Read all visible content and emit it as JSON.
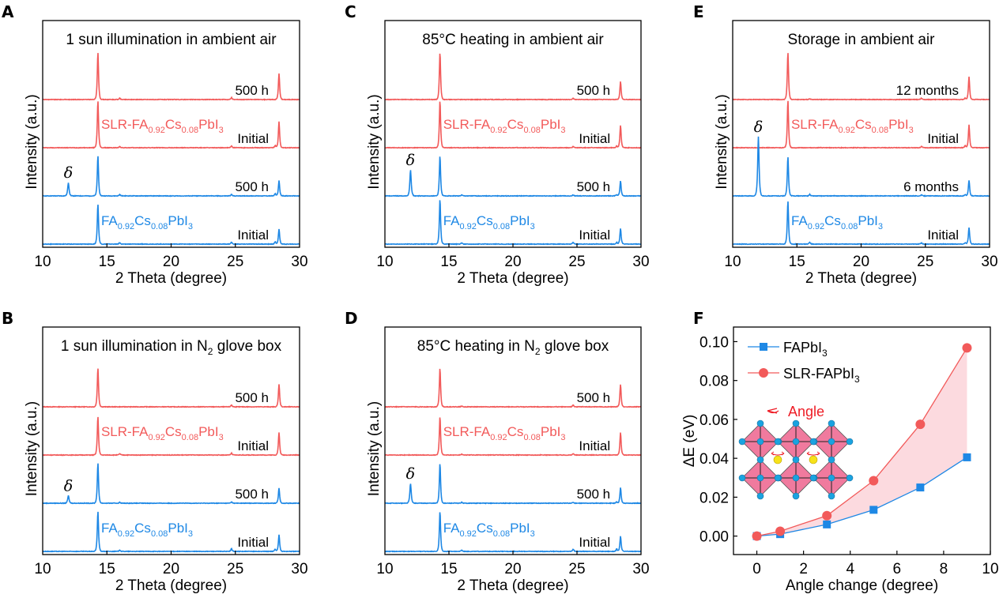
{
  "colors": {
    "red": "#f25a5a",
    "blue": "#1e88e5",
    "fill": "#fbd3d9",
    "octa": "#f07a9e",
    "atom": "#1aa3e0",
    "cation": "#f7e21a",
    "angle": "#ee1c25"
  },
  "chart_data": [
    {
      "id": "A",
      "type": "line",
      "letter": "A",
      "title": "1 sun illumination in ambient air",
      "xlabel": "2 Theta (degree)",
      "ylabel": "Intensity (a.u.)",
      "xlim": [
        10,
        30
      ],
      "xticks": [
        10,
        15,
        20,
        25,
        30
      ],
      "xtick_labels": [
        "10",
        "15",
        "20",
        "25",
        "30"
      ],
      "series": [
        {
          "name": "SLR-FA0.92Cs0.08PbI3 500 h",
          "color": "red",
          "offset": 3,
          "label": "500 h",
          "peaks": [
            [
              14.3,
              1.0
            ],
            [
              16.0,
              0.03
            ],
            [
              24.7,
              0.04
            ],
            [
              28.4,
              0.55
            ]
          ]
        },
        {
          "name": "SLR-FA0.92Cs0.08PbI3 Initial",
          "color": "red",
          "offset": 2,
          "label": "Initial",
          "peaks": [
            [
              14.3,
              1.0
            ],
            [
              16.0,
              0.03
            ],
            [
              24.7,
              0.04
            ],
            [
              28.1,
              0.05
            ],
            [
              28.4,
              0.55
            ]
          ]
        },
        {
          "name": "FA0.92Cs0.08PbI3 500 h",
          "color": "blue",
          "offset": 1,
          "label": "500 h",
          "peaks": [
            [
              12.0,
              0.28
            ],
            [
              14.3,
              0.85
            ],
            [
              16.0,
              0.03
            ],
            [
              24.7,
              0.03
            ],
            [
              28.1,
              0.05
            ],
            [
              28.4,
              0.32
            ]
          ]
        },
        {
          "name": "FA0.92Cs0.08PbI3 Initial",
          "color": "blue",
          "offset": 0,
          "label": "Initial",
          "peaks": [
            [
              14.3,
              0.85
            ],
            [
              16.0,
              0.03
            ],
            [
              24.7,
              0.04
            ],
            [
              28.1,
              0.05
            ],
            [
              28.4,
              0.32
            ]
          ]
        }
      ],
      "sample_labels": [
        {
          "text": "SLR-FA",
          "sub1": "0.92",
          "mid": "Cs",
          "sub2": "0.08",
          "end": "PbI",
          "sub3": "3",
          "color": "red"
        },
        {
          "text": "FA",
          "sub1": "0.92",
          "mid": "Cs",
          "sub2": "0.08",
          "end": "PbI",
          "sub3": "3",
          "color": "blue"
        }
      ],
      "delta_label": "δ",
      "delta_x": 12.0
    },
    {
      "id": "B",
      "type": "line",
      "letter": "B",
      "title": "1 sun illumination in N",
      "title_sub": "2",
      "title_end": " glove box",
      "xlabel": "2 Theta (degree)",
      "ylabel": "Intensity (a.u.)",
      "xlim": [
        10,
        30
      ],
      "xticks": [
        10,
        15,
        20,
        25,
        30
      ],
      "xtick_labels": [
        "10",
        "15",
        "20",
        "25",
        "30"
      ],
      "series": [
        {
          "name": "SLR-FA0.92Cs0.08PbI3 500 h",
          "color": "red",
          "offset": 3,
          "label": "500 h",
          "peaks": [
            [
              14.3,
              0.82
            ],
            [
              24.7,
              0.04
            ],
            [
              28.4,
              0.48
            ]
          ]
        },
        {
          "name": "SLR-FA0.92Cs0.08PbI3 Initial",
          "color": "red",
          "offset": 2,
          "label": "Initial",
          "peaks": [
            [
              14.3,
              0.82
            ],
            [
              16.0,
              0.03
            ],
            [
              24.7,
              0.04
            ],
            [
              28.4,
              0.48
            ]
          ]
        },
        {
          "name": "FA0.92Cs0.08PbI3 500 h",
          "color": "blue",
          "offset": 1,
          "label": "500 h",
          "peaks": [
            [
              12.0,
              0.16
            ],
            [
              14.3,
              0.85
            ],
            [
              16.0,
              0.02
            ],
            [
              24.7,
              0.03
            ],
            [
              28.4,
              0.32
            ]
          ]
        },
        {
          "name": "FA0.92Cs0.08PbI3 Initial",
          "color": "blue",
          "offset": 0,
          "label": "Initial",
          "peaks": [
            [
              14.3,
              0.85
            ],
            [
              16.0,
              0.03
            ],
            [
              24.7,
              0.06
            ],
            [
              28.1,
              0.05
            ],
            [
              28.4,
              0.35
            ]
          ]
        }
      ],
      "sample_labels": [
        {
          "text": "SLR-FA",
          "sub1": "0.92",
          "mid": "Cs",
          "sub2": "0.08",
          "end": "PbI",
          "sub3": "3",
          "color": "red"
        },
        {
          "text": "FA",
          "sub1": "0.92",
          "mid": "Cs",
          "sub2": "0.08",
          "end": "PbI",
          "sub3": "3",
          "color": "blue"
        }
      ],
      "delta_label": "δ",
      "delta_x": 12.0
    },
    {
      "id": "C",
      "type": "line",
      "letter": "C",
      "title": "85°C heating in ambient air",
      "xlabel": "2 Theta (degree)",
      "ylabel": "Intensity (a.u.)",
      "xlim": [
        10,
        30
      ],
      "xticks": [
        10,
        15,
        20,
        25,
        30
      ],
      "xtick_labels": [
        "10",
        "15",
        "20",
        "25",
        "30"
      ],
      "series": [
        {
          "name": "SLR-FA0.92Cs0.08PbI3 500 h",
          "color": "red",
          "offset": 3,
          "label": "500 h",
          "peaks": [
            [
              14.3,
              1.0
            ],
            [
              24.7,
              0.03
            ],
            [
              28.4,
              0.38
            ]
          ]
        },
        {
          "name": "SLR-FA0.92Cs0.08PbI3 Initial",
          "color": "red",
          "offset": 2,
          "label": "Initial",
          "peaks": [
            [
              14.3,
              1.0
            ],
            [
              24.7,
              0.03
            ],
            [
              28.1,
              0.04
            ],
            [
              28.4,
              0.48
            ]
          ]
        },
        {
          "name": "FA0.92Cs0.08PbI3 500 h",
          "color": "blue",
          "offset": 1,
          "label": "500 h",
          "peaks": [
            [
              12.0,
              0.55
            ],
            [
              14.3,
              0.85
            ],
            [
              16.0,
              0.02
            ],
            [
              24.7,
              0.02
            ],
            [
              28.1,
              0.03
            ],
            [
              28.4,
              0.32
            ]
          ]
        },
        {
          "name": "FA0.92Cs0.08PbI3 Initial",
          "color": "blue",
          "offset": 0,
          "label": "Initial",
          "peaks": [
            [
              14.3,
              0.95
            ],
            [
              16.0,
              0.03
            ],
            [
              24.7,
              0.04
            ],
            [
              28.1,
              0.04
            ],
            [
              28.4,
              0.33
            ]
          ]
        }
      ],
      "sample_labels": [
        {
          "text": "SLR-FA",
          "sub1": "0.92",
          "mid": "Cs",
          "sub2": "0.08",
          "end": "PbI",
          "sub3": "3",
          "color": "red"
        },
        {
          "text": "FA",
          "sub1": "0.92",
          "mid": "Cs",
          "sub2": "0.08",
          "end": "PbI",
          "sub3": "3",
          "color": "blue"
        }
      ],
      "delta_label": "δ",
      "delta_x": 12.0
    },
    {
      "id": "D",
      "type": "line",
      "letter": "D",
      "title": "85°C heating in N",
      "title_sub": "2",
      "title_end": " glove box",
      "xlabel": "2 Theta (degree)",
      "ylabel": "Intensity (a.u.)",
      "xlim": [
        10,
        30
      ],
      "xticks": [
        10,
        15,
        20,
        25,
        30
      ],
      "xtick_labels": [
        "10",
        "15",
        "20",
        "25",
        "30"
      ],
      "series": [
        {
          "name": "SLR-FA0.92Cs0.08PbI3 500 h",
          "color": "red",
          "offset": 3,
          "label": "500 h",
          "peaks": [
            [
              14.3,
              0.82
            ],
            [
              16.0,
              0.02
            ],
            [
              24.7,
              0.04
            ],
            [
              28.4,
              0.48
            ]
          ]
        },
        {
          "name": "SLR-FA0.92Cs0.08PbI3 Initial",
          "color": "red",
          "offset": 2,
          "label": "Initial",
          "peaks": [
            [
              14.3,
              0.82
            ],
            [
              16.0,
              0.02
            ],
            [
              24.7,
              0.03
            ],
            [
              28.4,
              0.48
            ]
          ]
        },
        {
          "name": "FA0.92Cs0.08PbI3 500 h",
          "color": "blue",
          "offset": 1,
          "label": "500 h",
          "peaks": [
            [
              12.0,
              0.42
            ],
            [
              14.3,
              0.85
            ],
            [
              16.0,
              0.02
            ],
            [
              24.7,
              0.02
            ],
            [
              28.1,
              0.03
            ],
            [
              28.4,
              0.33
            ]
          ]
        },
        {
          "name": "FA0.92Cs0.08PbI3 Initial",
          "color": "blue",
          "offset": 0,
          "label": "Initial",
          "peaks": [
            [
              14.3,
              0.85
            ],
            [
              16.0,
              0.03
            ],
            [
              24.7,
              0.05
            ],
            [
              28.1,
              0.05
            ],
            [
              28.4,
              0.32
            ]
          ]
        }
      ],
      "sample_labels": [
        {
          "text": "SLR-FA",
          "sub1": "0.92",
          "mid": "Cs",
          "sub2": "0.08",
          "end": "PbI",
          "sub3": "3",
          "color": "red"
        },
        {
          "text": "FA",
          "sub1": "0.92",
          "mid": "Cs",
          "sub2": "0.08",
          "end": "PbI",
          "sub3": "3",
          "color": "blue"
        }
      ],
      "delta_label": "δ",
      "delta_x": 12.0
    },
    {
      "id": "E",
      "type": "line",
      "letter": "E",
      "title": "Storage in ambient air",
      "xlabel": "2 Theta (degree)",
      "ylabel": "Intensity (a.u.)",
      "xlim": [
        10,
        30
      ],
      "xticks": [
        10,
        15,
        20,
        25,
        30
      ],
      "xtick_labels": [
        "10",
        "15",
        "20",
        "25",
        "30"
      ],
      "series": [
        {
          "name": "SLR-FA0.92Cs0.08PbI3 12 months",
          "color": "red",
          "offset": 3,
          "label": "12 months",
          "peaks": [
            [
              14.3,
              1.0
            ],
            [
              16.0,
              0.02
            ],
            [
              24.7,
              0.03
            ],
            [
              28.1,
              0.03
            ],
            [
              28.4,
              0.48
            ]
          ]
        },
        {
          "name": "SLR-FA0.92Cs0.08PbI3 Initial",
          "color": "red",
          "offset": 2,
          "label": "Initial",
          "peaks": [
            [
              14.3,
              1.0
            ],
            [
              24.7,
              0.03
            ],
            [
              28.1,
              0.05
            ],
            [
              28.4,
              0.48
            ]
          ]
        },
        {
          "name": "FA0.92Cs0.08PbI3 6 months",
          "color": "blue",
          "offset": 1,
          "label": "6 months",
          "peaks": [
            [
              12.0,
              1.25
            ],
            [
              14.3,
              0.83
            ],
            [
              16.0,
              0.03
            ],
            [
              24.7,
              0.02
            ],
            [
              28.1,
              0.03
            ],
            [
              28.4,
              0.33
            ]
          ]
        },
        {
          "name": "FA0.92Cs0.08PbI3 Initial",
          "color": "blue",
          "offset": 0,
          "label": "Initial",
          "peaks": [
            [
              14.3,
              0.92
            ],
            [
              16.0,
              0.04
            ],
            [
              24.7,
              0.03
            ],
            [
              28.1,
              0.03
            ],
            [
              28.4,
              0.35
            ]
          ]
        }
      ],
      "sample_labels": [
        {
          "text": "SLR-FA",
          "sub1": "0.92",
          "mid": "Cs",
          "sub2": "0.08",
          "end": "PbI",
          "sub3": "3",
          "color": "red"
        },
        {
          "text": "FA",
          "sub1": "0.92",
          "mid": "Cs",
          "sub2": "0.08",
          "end": "PbI",
          "sub3": "3",
          "color": "blue"
        }
      ],
      "delta_label": "δ",
      "delta_x": 12.0
    },
    {
      "id": "F",
      "type": "line",
      "letter": "F",
      "xlabel": "Angle change (degree)",
      "ylabel": "ΔE (eV)",
      "xlim": [
        -1,
        10
      ],
      "ylim": [
        -0.0095,
        0.1075
      ],
      "xticks": [
        0,
        2,
        4,
        6,
        8,
        10
      ],
      "xtick_labels": [
        "0",
        "2",
        "4",
        "6",
        "8",
        "10"
      ],
      "yticks": [
        0.0,
        0.02,
        0.04,
        0.06,
        0.08,
        0.1
      ],
      "ytick_labels": [
        "0.00",
        "0.02",
        "0.04",
        "0.06",
        "0.08",
        "0.10"
      ],
      "x": [
        0,
        1,
        3,
        5,
        7,
        9
      ],
      "series": [
        {
          "name": "FAPbI3",
          "legend": "FAPbI",
          "legend_sub": "3",
          "color": "blue",
          "marker": "square",
          "values": [
            0.0,
            0.001,
            0.006,
            0.0135,
            0.025,
            0.0405
          ]
        },
        {
          "name": "SLR-FAPbI3",
          "legend": "SLR-FAPbI",
          "legend_sub": "3",
          "color": "red",
          "marker": "circle",
          "values": [
            0.0,
            0.0025,
            0.0105,
            0.0285,
            0.0575,
            0.0968
          ]
        }
      ],
      "legend_position": "top-left",
      "shaded_between_series": true,
      "inset_label": "Angle"
    }
  ]
}
